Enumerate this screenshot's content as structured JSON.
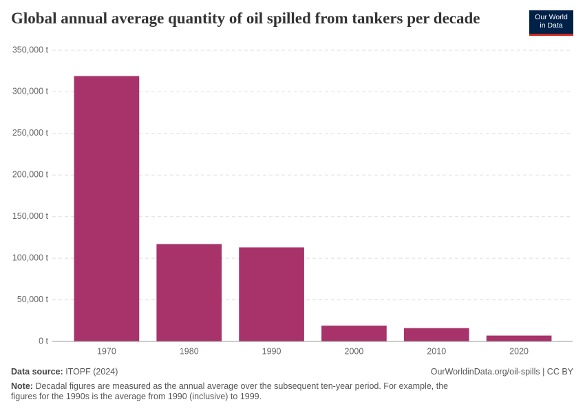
{
  "chart_data": {
    "type": "bar",
    "title": "Global annual average quantity of oil spilled from tankers per decade",
    "categories": [
      "1970",
      "1980",
      "1990",
      "2000",
      "2010",
      "2020"
    ],
    "values": [
      319000,
      117000,
      113000,
      19000,
      16000,
      7000
    ],
    "color": "#a8326a",
    "ylim": [
      0,
      350000
    ],
    "yticks": [
      {
        "value": 0,
        "label": "0 t"
      },
      {
        "value": 50000,
        "label": "50,000 t"
      },
      {
        "value": 100000,
        "label": "100,000 t"
      },
      {
        "value": 150000,
        "label": "150,000 t"
      },
      {
        "value": 200000,
        "label": "200,000 t"
      },
      {
        "value": 250000,
        "label": "250,000 t"
      },
      {
        "value": 300000,
        "label": "300,000 t"
      },
      {
        "value": 350000,
        "label": "350,000 t"
      }
    ],
    "grid": true
  },
  "logo": [
    "Our World",
    "in Data"
  ],
  "footer": {
    "source_label": "Data source:",
    "source": "ITOPF (2024)",
    "url": "OurWorldinData.org/oil-spills | CC BY",
    "note_label": "Note:",
    "note": "Decadal figures are measured as the annual average over the subsequent ten-year period. For example, the figures for the 1990s is the average from 1990 (inclusive) to 1999."
  }
}
